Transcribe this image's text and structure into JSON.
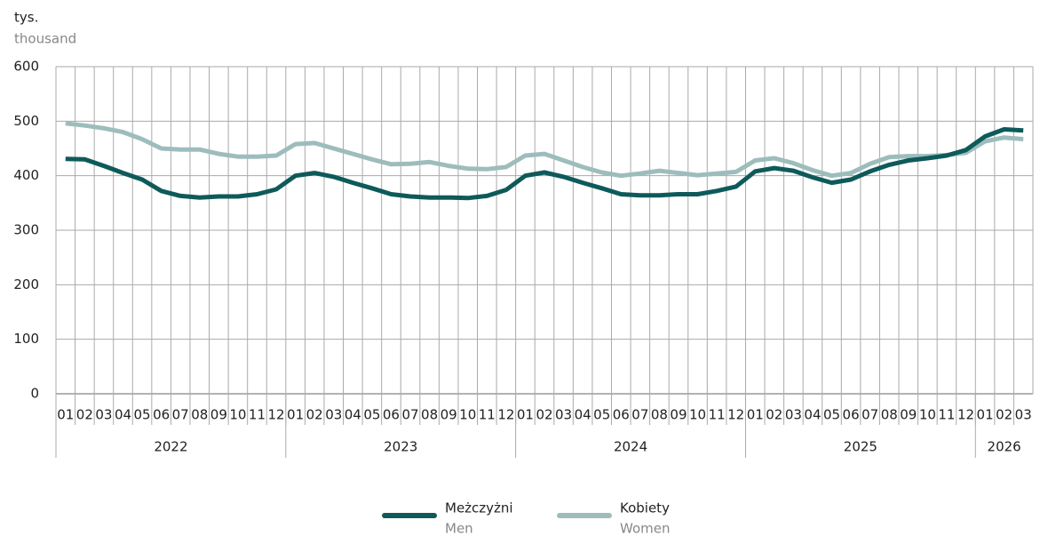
{
  "chart_data": {
    "type": "line",
    "y_unit": "tys.",
    "y_unit_en": "thousand",
    "categories": [
      "01",
      "02",
      "03",
      "04",
      "05",
      "06",
      "07",
      "08",
      "09",
      "10",
      "11",
      "12",
      "01",
      "02",
      "03",
      "04",
      "05",
      "06",
      "07",
      "08",
      "09",
      "10",
      "11",
      "12",
      "01",
      "02",
      "03",
      "04",
      "05",
      "06",
      "07",
      "08",
      "09",
      "10",
      "11",
      "12",
      "01",
      "02",
      "03",
      "04",
      "05",
      "06",
      "07",
      "08",
      "09",
      "10",
      "11",
      "12",
      "01",
      "02",
      "03"
    ],
    "years": [
      "2022",
      "2023",
      "2024",
      "2025",
      "2026"
    ],
    "ylim": [
      0,
      600
    ],
    "yticks": [
      0,
      100,
      200,
      300,
      400,
      500,
      600
    ],
    "grid": true,
    "series": [
      {
        "name": "Meżczyżni",
        "name_en": "Men",
        "color": "#0e5a5a",
        "values": [
          431,
          430,
          418,
          405,
          393,
          372,
          363,
          360,
          362,
          362,
          366,
          375,
          400,
          405,
          398,
          387,
          377,
          366,
          362,
          360,
          360,
          359,
          363,
          374,
          400,
          406,
          398,
          387,
          377,
          366,
          364,
          364,
          366,
          366,
          372,
          380,
          408,
          414,
          409,
          397,
          387,
          393,
          408,
          420,
          428,
          432,
          437,
          447,
          472,
          485,
          483
        ]
      },
      {
        "name": "Kobiety",
        "name_en": "Women",
        "color": "#9dbdbc",
        "values": [
          496,
          492,
          487,
          480,
          467,
          450,
          448,
          448,
          440,
          435,
          435,
          437,
          458,
          460,
          450,
          440,
          430,
          421,
          422,
          425,
          418,
          413,
          412,
          416,
          437,
          440,
          428,
          416,
          406,
          400,
          404,
          409,
          405,
          401,
          404,
          407,
          428,
          432,
          423,
          410,
          400,
          405,
          422,
          434,
          436,
          436,
          438,
          442,
          463,
          470,
          467
        ]
      }
    ]
  }
}
